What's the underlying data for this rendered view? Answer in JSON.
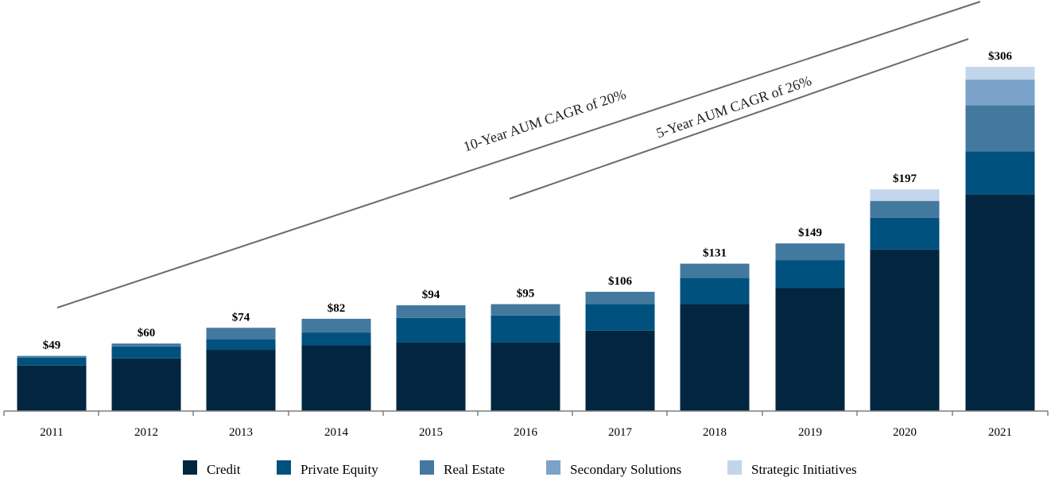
{
  "chart_data": {
    "type": "bar",
    "stacked": true,
    "title": "",
    "xlabel": "",
    "ylabel": "",
    "ylim": [
      0,
      306
    ],
    "grid": false,
    "legend_position": "bottom",
    "categories": [
      "2011",
      "2012",
      "2013",
      "2014",
      "2015",
      "2016",
      "2017",
      "2018",
      "2019",
      "2020",
      "2021"
    ],
    "totals_labels": [
      "$49",
      "$60",
      "$74",
      "$82",
      "$94",
      "$95",
      "$106",
      "$131",
      "$149",
      "$197",
      "$306"
    ],
    "series": [
      {
        "name": "Credit",
        "color": "#02263f",
        "values": [
          40.4,
          46.8,
          54.4,
          58.6,
          60.8,
          60.8,
          71.5,
          95.3,
          109.5,
          143.6,
          192.7
        ]
      },
      {
        "name": "Private Equity",
        "color": "#01517f",
        "values": [
          7.1,
          10.6,
          9.2,
          11.3,
          22.0,
          24.2,
          23.7,
          23.0,
          24.7,
          28.3,
          38.2
        ]
      },
      {
        "name": "Real Estate",
        "color": "#44799f",
        "values": [
          1.5,
          2.6,
          10.4,
          12.1,
          11.2,
          10.0,
          10.8,
          12.7,
          14.8,
          14.9,
          41.0
        ]
      },
      {
        "name": "Secondary Solutions",
        "color": "#7ba3c9",
        "values": [
          0,
          0,
          0,
          0,
          0,
          0,
          0,
          0,
          0,
          0,
          22.7
        ]
      },
      {
        "name": "Strategic Initiatives",
        "color": "#c3d5ea",
        "values": [
          0,
          0,
          0,
          0,
          0,
          0,
          0,
          0,
          0,
          10.2,
          11.3
        ]
      }
    ],
    "annotations": [
      {
        "text": "10-Year AUM CAGR of 20%",
        "from_category": "2011",
        "to_category": "2021"
      },
      {
        "text": "5-Year AUM CAGR of 26%",
        "from_category": "2016",
        "to_category": "2021"
      }
    ]
  }
}
